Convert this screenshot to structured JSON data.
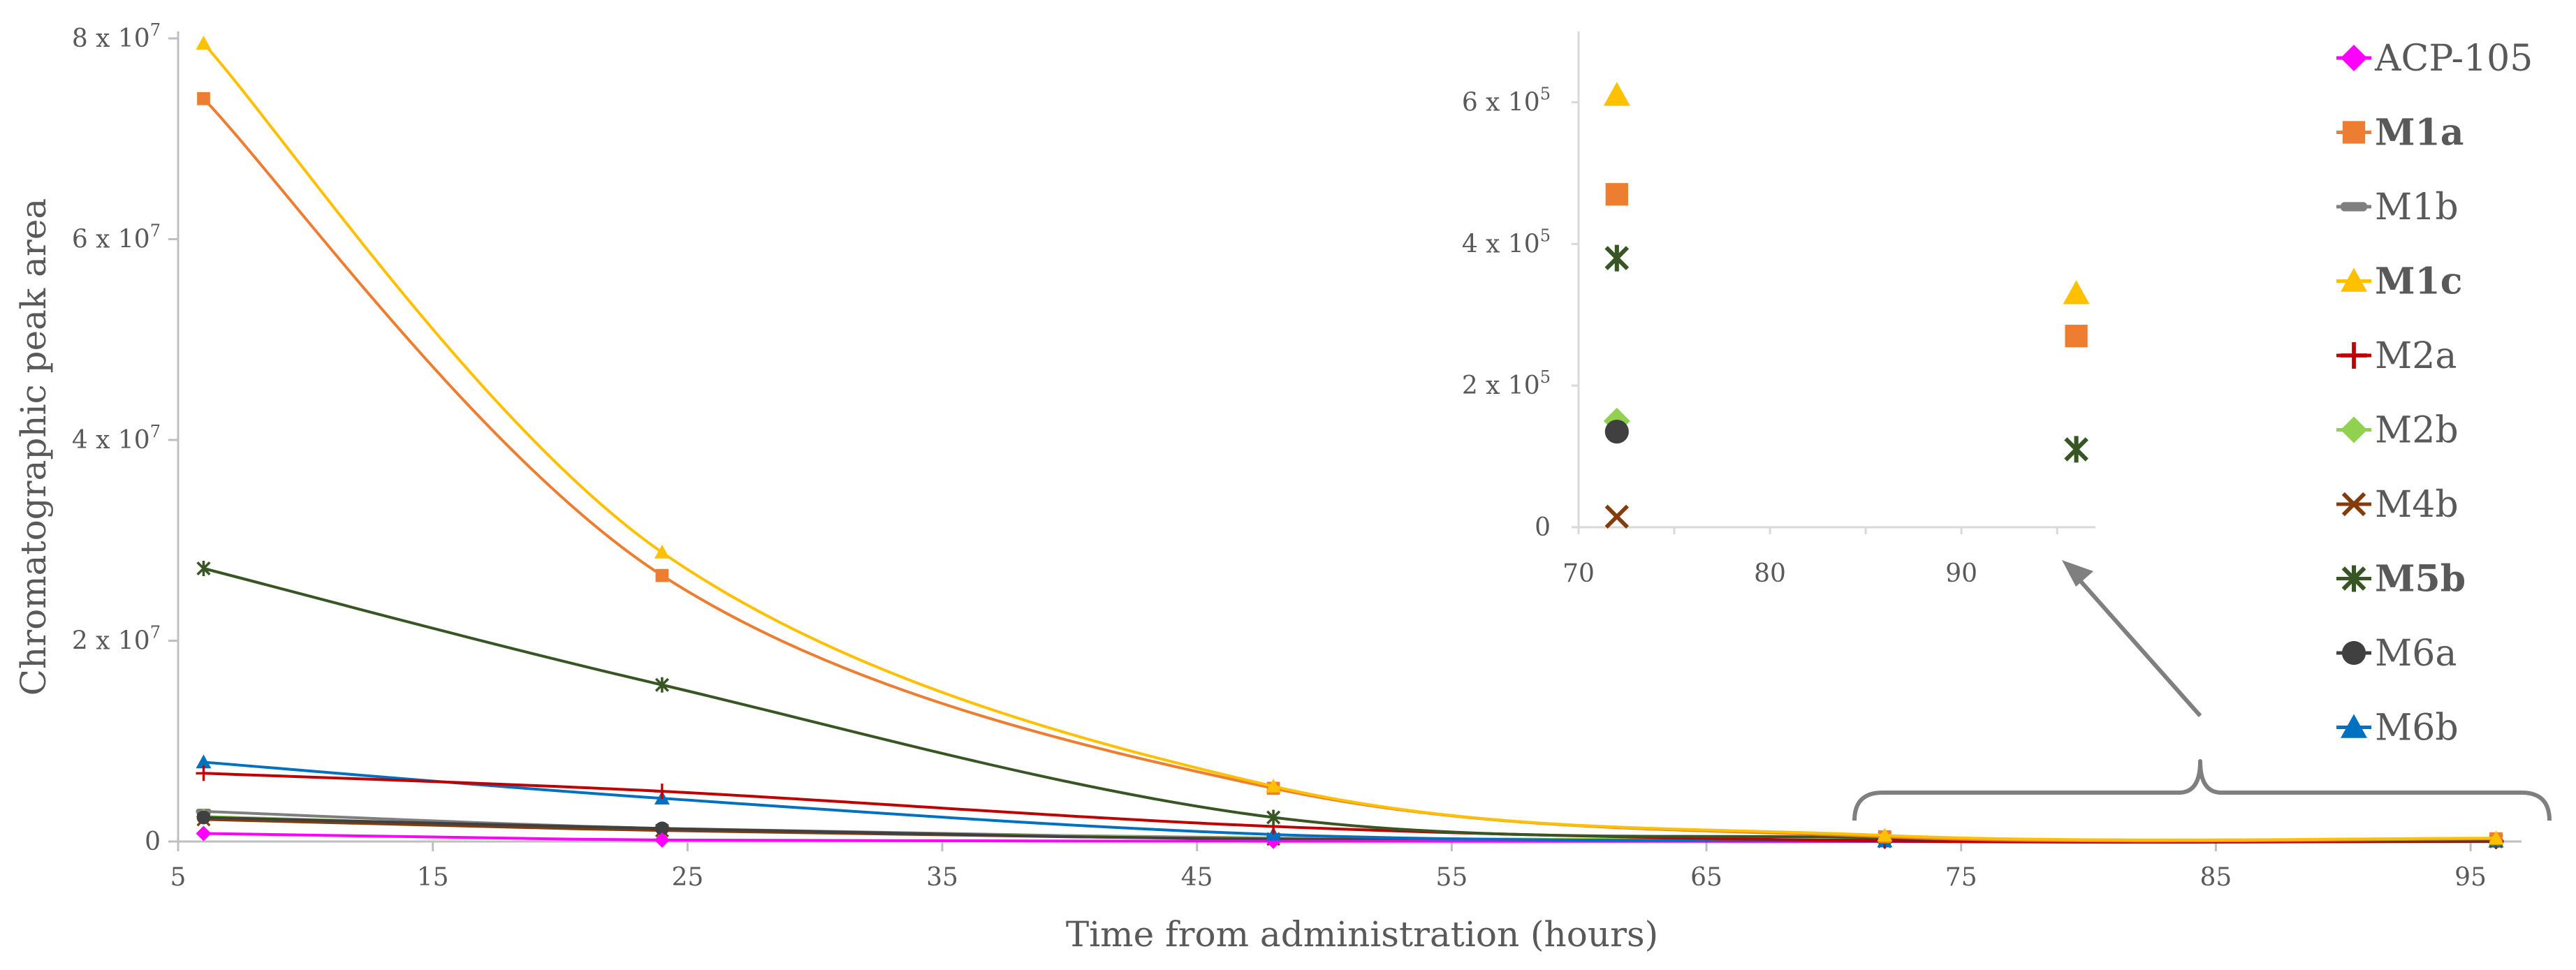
{
  "chart_data": {
    "type": "line",
    "title": "",
    "xlabel": "Time from administration (hours)",
    "ylabel": "Chromatographic peak area",
    "xlim": [
      5,
      97
    ],
    "ylim": [
      0,
      80000000
    ],
    "x_ticks": [
      5,
      15,
      25,
      35,
      45,
      55,
      65,
      75,
      85,
      95
    ],
    "x_tick_labels": [
      "5",
      "15",
      "25",
      "35",
      "45",
      "55",
      "65",
      "75",
      "85",
      "95"
    ],
    "y_ticks": [
      0,
      20000000,
      40000000,
      60000000,
      80000000
    ],
    "y_tick_labels": [
      {
        "base": "0",
        "exp": ""
      },
      {
        "base": "2 x 10",
        "exp": "7"
      },
      {
        "base": "4 x 10",
        "exp": "7"
      },
      {
        "base": "6 x 10",
        "exp": "7"
      },
      {
        "base": "8 x 10",
        "exp": "7"
      }
    ],
    "grid": false,
    "legend_position": "right",
    "x": [
      6,
      24,
      48,
      72,
      96
    ],
    "series": [
      {
        "name": "ACP-105",
        "bold": false,
        "color": "#FF00FF",
        "marker": "diamond",
        "values": [
          800000,
          150000,
          30000,
          5000,
          2000
        ]
      },
      {
        "name": "M1a",
        "bold": true,
        "color": "#ED7D31",
        "marker": "square",
        "values": [
          74000000,
          26500000,
          5300000,
          470000,
          270000
        ]
      },
      {
        "name": "M1b",
        "bold": false,
        "color": "#7F7F7F",
        "marker": "dash",
        "values": [
          3000000,
          1300000,
          350000,
          50000,
          20000
        ]
      },
      {
        "name": "M1c",
        "bold": true,
        "color": "#FFC000",
        "marker": "triangle",
        "values": [
          79500000,
          28800000,
          5500000,
          610000,
          330000
        ]
      },
      {
        "name": "M2a",
        "bold": false,
        "color": "#C00000",
        "marker": "plus",
        "values": [
          6800000,
          5000000,
          1500000,
          50000,
          20000
        ]
      },
      {
        "name": "M2b",
        "bold": false,
        "color": "#92D050",
        "marker": "diamond",
        "values": [
          2500000,
          1200000,
          300000,
          150000,
          50000
        ]
      },
      {
        "name": "M4b",
        "bold": false,
        "color": "#843C0C",
        "marker": "x",
        "values": [
          2200000,
          1100000,
          250000,
          15000,
          5000
        ]
      },
      {
        "name": "M5b",
        "bold": true,
        "color": "#375623",
        "marker": "star",
        "values": [
          27200000,
          15600000,
          2400000,
          380000,
          110000
        ]
      },
      {
        "name": "M6a",
        "bold": false,
        "color": "#404040",
        "marker": "circle",
        "values": [
          2400000,
          1300000,
          200000,
          135000,
          40000
        ]
      },
      {
        "name": "M6b",
        "bold": false,
        "color": "#0070C0",
        "marker": "triangle",
        "values": [
          7900000,
          4300000,
          700000,
          30000,
          10000
        ]
      }
    ],
    "inset": {
      "xlim": [
        70,
        97
      ],
      "ylim": [
        0,
        700000
      ],
      "x_ticks": [
        70,
        80,
        90
      ],
      "x_tick_labels": [
        "70",
        "80",
        "90"
      ],
      "y_ticks": [
        0,
        200000,
        400000,
        600000
      ],
      "y_tick_labels": [
        {
          "base": "0",
          "exp": ""
        },
        {
          "base": "2 x 10",
          "exp": "5"
        },
        {
          "base": "4 x 10",
          "exp": "5"
        },
        {
          "base": "6 x 10",
          "exp": "5"
        }
      ],
      "points": [
        {
          "series": "M1c",
          "x": 72,
          "y": 610000
        },
        {
          "series": "M1a",
          "x": 72,
          "y": 470000
        },
        {
          "series": "M5b",
          "x": 72,
          "y": 380000
        },
        {
          "series": "M2b",
          "x": 72,
          "y": 150000
        },
        {
          "series": "M6a",
          "x": 72,
          "y": 135000
        },
        {
          "series": "M4b",
          "x": 72,
          "y": 15000
        },
        {
          "series": "M1c",
          "x": 96,
          "y": 330000
        },
        {
          "series": "M1a",
          "x": 96,
          "y": 270000
        },
        {
          "series": "M5b",
          "x": 96,
          "y": 110000
        }
      ]
    },
    "annotations": [
      {
        "type": "brace",
        "from_x": 70,
        "to_x": 97,
        "description": "zoom region shown in inset"
      },
      {
        "type": "arrow",
        "description": "points from brace to inset"
      }
    ]
  }
}
